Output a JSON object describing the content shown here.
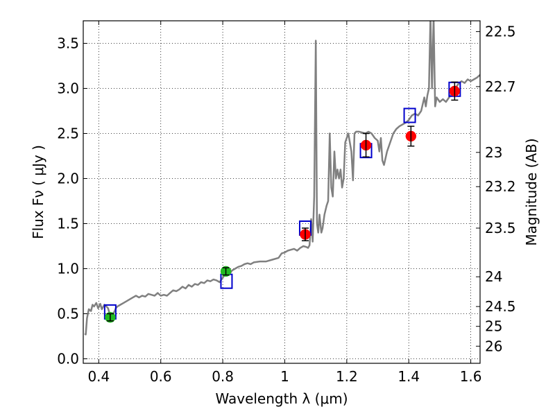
{
  "chart_data": {
    "type": "line",
    "xlabel": "Wavelength  λ (μm)",
    "ylabel": "Flux  Fν  ( μJy )",
    "ylabel_right": "Magnitude (AB)",
    "xlim": [
      0.35,
      1.63
    ],
    "ylim": [
      -0.05,
      3.75
    ],
    "grid": true,
    "x_ticks": [
      0.4,
      0.6,
      0.8,
      1.0,
      1.2,
      1.4,
      1.6
    ],
    "x_tick_labels": [
      "0.4",
      "0.6",
      "0.8",
      "1",
      "1.2",
      "1.4",
      "1.6"
    ],
    "y_ticks": [
      0.0,
      0.5,
      1.0,
      1.5,
      2.0,
      2.5,
      3.0,
      3.5
    ],
    "y_tick_labels": [
      "0.0",
      "0.5",
      "1.0",
      "1.5",
      "2.0",
      "2.5",
      "3.0",
      "3.5"
    ],
    "right_ticks": [
      {
        "flux": 3.63,
        "label": "22.5"
      },
      {
        "flux": 3.02,
        "label": "22.7"
      },
      {
        "flux": 2.29,
        "label": "23"
      },
      {
        "flux": 1.91,
        "label": "23.2"
      },
      {
        "flux": 1.45,
        "label": "23.5"
      },
      {
        "flux": 0.91,
        "label": "24"
      },
      {
        "flux": 0.58,
        "label": "24.5"
      },
      {
        "flux": 0.36,
        "label": "25"
      },
      {
        "flux": 0.14,
        "label": "26"
      }
    ],
    "series": [
      {
        "kind": "line",
        "color": "#808080",
        "points": [
          [
            0.355,
            0.28
          ],
          [
            0.358,
            0.27
          ],
          [
            0.362,
            0.45
          ],
          [
            0.368,
            0.55
          ],
          [
            0.375,
            0.53
          ],
          [
            0.38,
            0.6
          ],
          [
            0.385,
            0.58
          ],
          [
            0.392,
            0.62
          ],
          [
            0.398,
            0.56
          ],
          [
            0.405,
            0.61
          ],
          [
            0.41,
            0.55
          ],
          [
            0.418,
            0.6
          ],
          [
            0.425,
            0.58
          ],
          [
            0.43,
            0.56
          ],
          [
            0.435,
            0.5
          ],
          [
            0.44,
            0.48
          ],
          [
            0.445,
            0.5
          ],
          [
            0.45,
            0.52
          ],
          [
            0.455,
            0.56
          ],
          [
            0.46,
            0.58
          ],
          [
            0.47,
            0.6
          ],
          [
            0.48,
            0.62
          ],
          [
            0.49,
            0.64
          ],
          [
            0.5,
            0.66
          ],
          [
            0.51,
            0.68
          ],
          [
            0.52,
            0.7
          ],
          [
            0.53,
            0.68
          ],
          [
            0.54,
            0.7
          ],
          [
            0.55,
            0.69
          ],
          [
            0.56,
            0.72
          ],
          [
            0.57,
            0.71
          ],
          [
            0.58,
            0.7
          ],
          [
            0.59,
            0.73
          ],
          [
            0.6,
            0.7
          ],
          [
            0.61,
            0.71
          ],
          [
            0.62,
            0.7
          ],
          [
            0.63,
            0.73
          ],
          [
            0.64,
            0.76
          ],
          [
            0.65,
            0.75
          ],
          [
            0.66,
            0.77
          ],
          [
            0.67,
            0.8
          ],
          [
            0.68,
            0.78
          ],
          [
            0.69,
            0.82
          ],
          [
            0.7,
            0.8
          ],
          [
            0.71,
            0.83
          ],
          [
            0.72,
            0.82
          ],
          [
            0.73,
            0.85
          ],
          [
            0.74,
            0.84
          ],
          [
            0.75,
            0.87
          ],
          [
            0.76,
            0.86
          ],
          [
            0.77,
            0.88
          ],
          [
            0.78,
            0.87
          ],
          [
            0.79,
            0.85
          ],
          [
            0.8,
            0.9
          ],
          [
            0.81,
            0.95
          ],
          [
            0.82,
            0.93
          ],
          [
            0.83,
            0.98
          ],
          [
            0.84,
            1.0
          ],
          [
            0.85,
            1.02
          ],
          [
            0.86,
            1.03
          ],
          [
            0.87,
            1.05
          ],
          [
            0.88,
            1.06
          ],
          [
            0.89,
            1.05
          ],
          [
            0.9,
            1.07
          ],
          [
            0.92,
            1.08
          ],
          [
            0.94,
            1.08
          ],
          [
            0.96,
            1.1
          ],
          [
            0.98,
            1.12
          ],
          [
            0.99,
            1.17
          ],
          [
            1.0,
            1.18
          ],
          [
            1.01,
            1.2
          ],
          [
            1.02,
            1.21
          ],
          [
            1.03,
            1.22
          ],
          [
            1.04,
            1.2
          ],
          [
            1.05,
            1.23
          ],
          [
            1.06,
            1.25
          ],
          [
            1.07,
            1.24
          ],
          [
            1.075,
            1.23
          ],
          [
            1.08,
            1.26
          ],
          [
            1.085,
            1.55
          ],
          [
            1.09,
            1.3
          ],
          [
            1.095,
            1.8
          ],
          [
            1.1,
            3.53
          ],
          [
            1.104,
            1.5
          ],
          [
            1.108,
            1.4
          ],
          [
            1.112,
            1.6
          ],
          [
            1.118,
            1.4
          ],
          [
            1.122,
            1.45
          ],
          [
            1.128,
            1.6
          ],
          [
            1.135,
            1.7
          ],
          [
            1.14,
            1.75
          ],
          [
            1.145,
            2.5
          ],
          [
            1.15,
            1.9
          ],
          [
            1.155,
            1.8
          ],
          [
            1.16,
            2.3
          ],
          [
            1.165,
            2.0
          ],
          [
            1.17,
            2.1
          ],
          [
            1.175,
            2.0
          ],
          [
            1.18,
            2.1
          ],
          [
            1.185,
            1.9
          ],
          [
            1.19,
            2.0
          ],
          [
            1.195,
            2.4
          ],
          [
            1.2,
            2.45
          ],
          [
            1.205,
            2.5
          ],
          [
            1.21,
            2.4
          ],
          [
            1.215,
            2.3
          ],
          [
            1.22,
            1.98
          ],
          [
            1.225,
            2.5
          ],
          [
            1.23,
            2.52
          ],
          [
            1.24,
            2.52
          ],
          [
            1.25,
            2.51
          ],
          [
            1.26,
            2.5
          ],
          [
            1.27,
            2.52
          ],
          [
            1.28,
            2.5
          ],
          [
            1.29,
            2.45
          ],
          [
            1.3,
            2.42
          ],
          [
            1.305,
            2.3
          ],
          [
            1.31,
            2.45
          ],
          [
            1.315,
            2.2
          ],
          [
            1.32,
            2.15
          ],
          [
            1.33,
            2.3
          ],
          [
            1.34,
            2.4
          ],
          [
            1.35,
            2.5
          ],
          [
            1.36,
            2.55
          ],
          [
            1.37,
            2.58
          ],
          [
            1.38,
            2.6
          ],
          [
            1.39,
            2.62
          ],
          [
            1.4,
            2.65
          ],
          [
            1.41,
            2.7
          ],
          [
            1.42,
            2.72
          ],
          [
            1.43,
            2.7
          ],
          [
            1.44,
            2.75
          ],
          [
            1.45,
            2.9
          ],
          [
            1.455,
            2.8
          ],
          [
            1.46,
            2.92
          ],
          [
            1.465,
            3.0
          ],
          [
            1.47,
            3.8
          ],
          [
            1.475,
            3.0
          ],
          [
            1.48,
            3.8
          ],
          [
            1.485,
            2.8
          ],
          [
            1.49,
            2.9
          ],
          [
            1.5,
            2.85
          ],
          [
            1.51,
            2.88
          ],
          [
            1.52,
            2.85
          ],
          [
            1.53,
            2.9
          ],
          [
            1.54,
            2.95
          ],
          [
            1.55,
            3.0
          ],
          [
            1.56,
            3.05
          ],
          [
            1.57,
            3.08
          ],
          [
            1.58,
            3.06
          ],
          [
            1.59,
            3.1
          ],
          [
            1.6,
            3.08
          ],
          [
            1.61,
            3.1
          ],
          [
            1.62,
            3.12
          ],
          [
            1.63,
            3.15
          ]
        ]
      },
      {
        "kind": "squares",
        "color": "#0000cc",
        "points": [
          [
            0.437,
            0.52
          ],
          [
            0.812,
            0.86
          ],
          [
            1.066,
            1.45
          ],
          [
            1.262,
            2.31
          ],
          [
            1.403,
            2.7
          ],
          [
            1.548,
            2.99
          ]
        ]
      },
      {
        "kind": "points",
        "color": "#ff0000",
        "points": [
          {
            "x": 1.066,
            "y": 1.38,
            "err": 0.07
          },
          {
            "x": 1.262,
            "y": 2.37,
            "err": 0.13
          },
          {
            "x": 1.407,
            "y": 2.47,
            "err": 0.11
          },
          {
            "x": 1.548,
            "y": 2.97,
            "err": 0.1
          }
        ]
      },
      {
        "kind": "points",
        "color": "#22bb22",
        "points": [
          {
            "x": 0.437,
            "y": 0.46,
            "err": 0.04
          },
          {
            "x": 0.81,
            "y": 0.97,
            "err": 0.04
          }
        ]
      }
    ]
  }
}
